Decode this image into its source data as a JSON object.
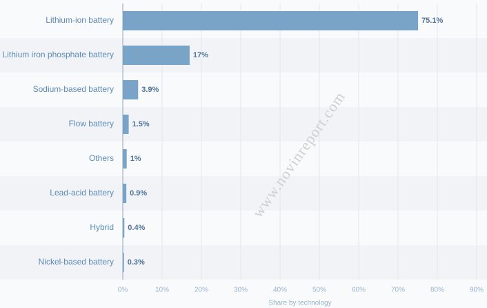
{
  "chart_data": {
    "type": "hbar",
    "categories": [
      "Lithium-ion battery",
      "Lithium iron phosphate battery",
      "Sodium-based battery",
      "Flow battery",
      "Others",
      "Lead-acid battery",
      "Hybrid",
      "Nickel-based battery"
    ],
    "values": [
      75.1,
      17,
      3.9,
      1.5,
      1,
      0.9,
      0.4,
      0.3
    ],
    "value_labels": [
      "75.1%",
      "17%",
      "3.9%",
      "1.5%",
      "1%",
      "0.9%",
      "0.4%",
      "0.3%"
    ],
    "color": "#7aa3c8",
    "xlabel": "Share by technology",
    "xlim": [
      0,
      90
    ],
    "xticks": [
      {
        "value": 0,
        "label": "0%"
      },
      {
        "value": 10,
        "label": "10%"
      },
      {
        "value": 20,
        "label": "20%"
      },
      {
        "value": 30,
        "label": "30%"
      },
      {
        "value": 40,
        "label": "40%"
      },
      {
        "value": 50,
        "label": "50%"
      },
      {
        "value": 60,
        "label": "60%"
      },
      {
        "value": 70,
        "label": "70%"
      },
      {
        "value": 80,
        "label": "80%"
      },
      {
        "value": 90,
        "label": "90%"
      }
    ],
    "grid": true,
    "watermark": "www.novinreport.com"
  }
}
